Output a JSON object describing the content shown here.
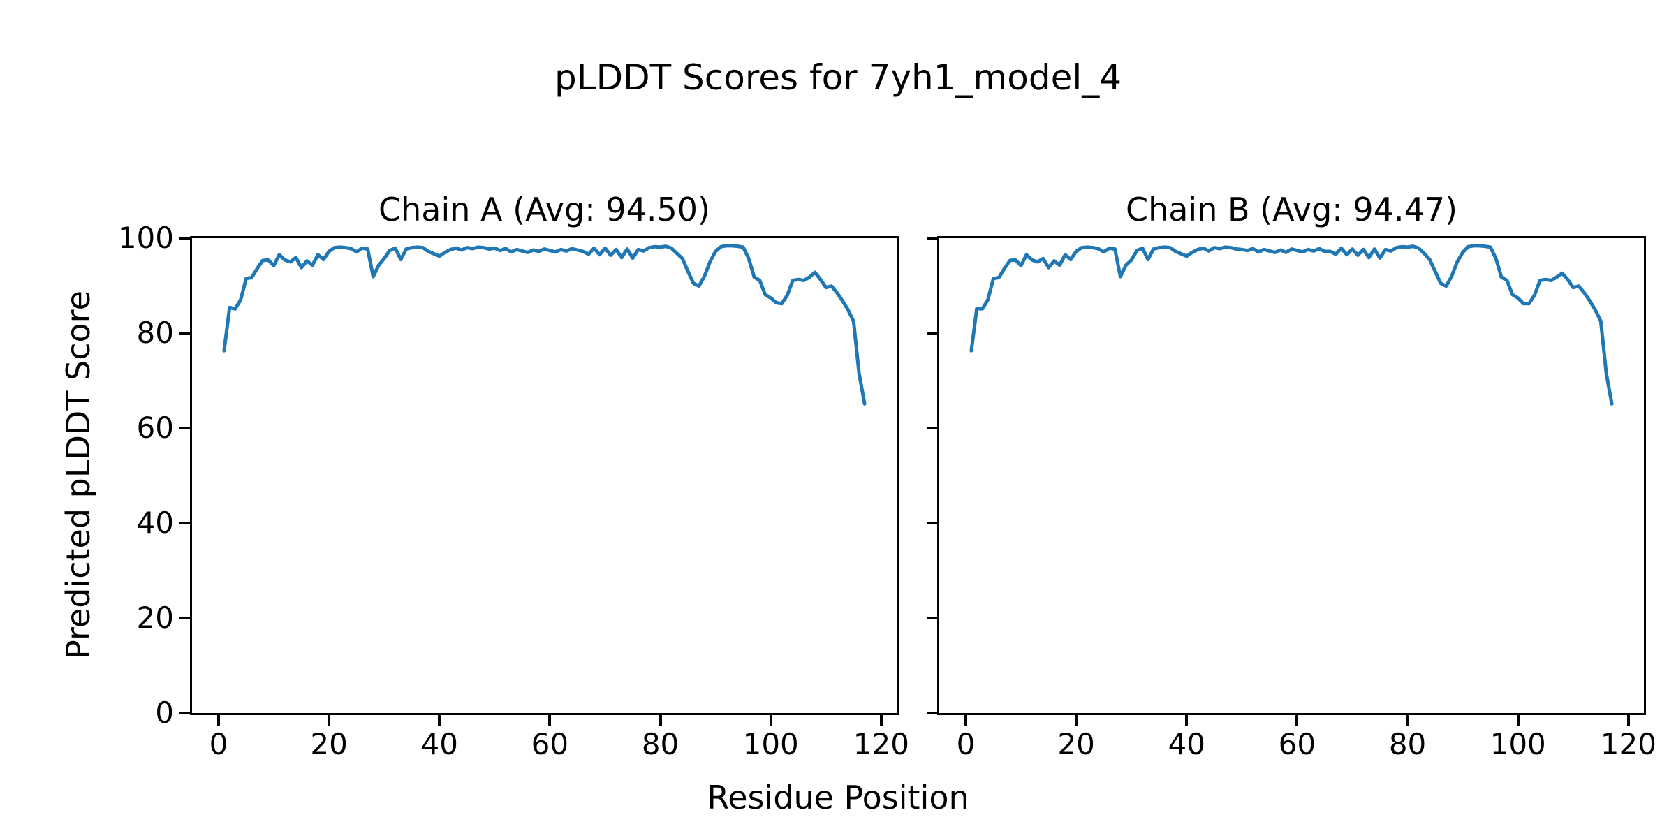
{
  "figure": {
    "suptitle": "pLDDT Scores for 7yh1_model_4",
    "xlabel": "Residue Position",
    "ylabel": "Predicted pLDDT Score",
    "background_color": "#ffffff",
    "text_color": "#000000",
    "spine_color": "#000000",
    "line_color": "#1f77b4"
  },
  "chart_data": [
    {
      "type": "line",
      "title": "Chain A (Avg: 94.50)",
      "chain": "A",
      "average_plddt": 94.5,
      "x_start": 1,
      "x_end": 117,
      "xlim": [
        -4.8,
        122.8
      ],
      "ylim": [
        0,
        100
      ],
      "xticks": [
        0,
        20,
        40,
        60,
        80,
        100,
        120
      ],
      "yticks": [
        0,
        20,
        40,
        60,
        80,
        100
      ],
      "ytick_labels": [
        "0",
        "20",
        "40",
        "60",
        "80",
        "100"
      ],
      "values": [
        76.3,
        85.4,
        85.1,
        87.0,
        91.5,
        91.7,
        93.6,
        95.3,
        95.4,
        94.2,
        96.5,
        95.4,
        95.0,
        95.9,
        93.8,
        95.2,
        94.3,
        96.5,
        95.5,
        97.2,
        98.0,
        98.1,
        98.0,
        97.8,
        97.1,
        97.9,
        97.7,
        91.9,
        94.3,
        95.7,
        97.4,
        97.9,
        95.5,
        97.7,
        98.0,
        98.1,
        98.0,
        97.2,
        96.7,
        96.2,
        97.0,
        97.6,
        97.9,
        97.5,
        98.0,
        97.8,
        98.1,
        98.0,
        97.7,
        97.9,
        97.4,
        97.8,
        97.1,
        97.6,
        97.3,
        97.0,
        97.5,
        97.2,
        97.7,
        97.4,
        97.1,
        97.6,
        97.3,
        97.8,
        97.5,
        97.2,
        96.6,
        97.9,
        96.5,
        97.9,
        96.4,
        97.6,
        95.9,
        97.7,
        95.8,
        97.6,
        97.3,
        98.0,
        98.2,
        98.1,
        98.3,
        97.9,
        96.8,
        95.7,
        93.0,
        90.5,
        89.9,
        92.0,
        95.0,
        97.2,
        98.2,
        98.4,
        98.4,
        98.3,
        98.1,
        95.7,
        91.8,
        91.1,
        88.1,
        87.4,
        86.4,
        86.2,
        88.0,
        91.1,
        91.3,
        91.1,
        91.8,
        92.8,
        91.3,
        89.6,
        89.9,
        88.5,
        86.8,
        84.9,
        82.5,
        71.5,
        65.1
      ]
    },
    {
      "type": "line",
      "title": "Chain B (Avg: 94.47)",
      "chain": "B",
      "average_plddt": 94.47,
      "x_start": 1,
      "x_end": 117,
      "xlim": [
        -4.8,
        122.8
      ],
      "ylim": [
        0,
        100
      ],
      "xticks": [
        0,
        20,
        40,
        60,
        80,
        100,
        120
      ],
      "yticks": [
        0,
        20,
        40,
        60,
        80,
        100
      ],
      "ytick_labels": [],
      "values": [
        76.3,
        85.2,
        85.1,
        87.0,
        91.5,
        91.7,
        93.6,
        95.3,
        95.4,
        94.2,
        96.5,
        95.4,
        95.0,
        95.7,
        93.8,
        95.2,
        94.3,
        96.5,
        95.5,
        97.2,
        98.0,
        98.1,
        98.0,
        97.8,
        97.1,
        97.9,
        97.7,
        91.9,
        94.3,
        95.4,
        97.4,
        97.9,
        95.5,
        97.7,
        98.0,
        98.1,
        98.0,
        97.2,
        96.7,
        96.2,
        97.0,
        97.6,
        97.9,
        97.3,
        98.0,
        97.8,
        98.1,
        98.0,
        97.7,
        97.6,
        97.4,
        97.8,
        97.1,
        97.6,
        97.3,
        97.0,
        97.5,
        97.0,
        97.7,
        97.4,
        97.1,
        97.6,
        97.3,
        97.8,
        97.2,
        97.2,
        96.6,
        97.9,
        96.5,
        97.7,
        96.4,
        97.6,
        95.9,
        97.7,
        95.8,
        97.6,
        97.3,
        98.0,
        98.2,
        98.1,
        98.3,
        97.9,
        96.8,
        95.5,
        93.0,
        90.5,
        89.9,
        92.0,
        95.0,
        97.0,
        98.2,
        98.4,
        98.4,
        98.3,
        98.1,
        95.7,
        91.8,
        91.1,
        88.1,
        87.4,
        86.2,
        86.2,
        88.0,
        91.1,
        91.3,
        91.1,
        91.8,
        92.6,
        91.3,
        89.6,
        89.9,
        88.5,
        86.8,
        84.9,
        82.5,
        71.5,
        65.1
      ]
    }
  ]
}
